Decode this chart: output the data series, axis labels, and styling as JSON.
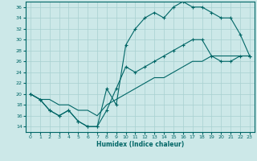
{
  "title": "",
  "xlabel": "Humidex (Indice chaleur)",
  "xlim": [
    -0.5,
    23.5
  ],
  "ylim": [
    13,
    37
  ],
  "xticks": [
    0,
    1,
    2,
    3,
    4,
    5,
    6,
    7,
    8,
    9,
    10,
    11,
    12,
    13,
    14,
    15,
    16,
    17,
    18,
    19,
    20,
    21,
    22,
    23
  ],
  "yticks": [
    14,
    16,
    18,
    20,
    22,
    24,
    26,
    28,
    30,
    32,
    34,
    36
  ],
  "bg_color": "#cce8e8",
  "grid_color": "#a8d0d0",
  "line_color": "#006666",
  "line1_x": [
    0,
    1,
    2,
    3,
    4,
    5,
    6,
    7,
    8,
    9,
    10,
    11,
    12,
    13,
    14,
    15,
    16,
    17,
    18,
    19,
    20,
    21,
    22,
    23
  ],
  "line1_y": [
    20,
    19,
    17,
    16,
    17,
    15,
    14,
    14,
    21,
    18,
    29,
    32,
    34,
    35,
    34,
    36,
    37,
    36,
    36,
    35,
    34,
    34,
    31,
    27
  ],
  "line2_x": [
    0,
    1,
    2,
    3,
    4,
    5,
    6,
    7,
    8,
    9,
    10,
    11,
    12,
    13,
    14,
    15,
    16,
    17,
    18,
    19,
    20,
    21,
    22,
    23
  ],
  "line2_y": [
    20,
    19,
    17,
    16,
    17,
    15,
    14,
    14,
    17,
    21,
    25,
    24,
    25,
    26,
    27,
    28,
    29,
    30,
    30,
    27,
    26,
    26,
    27,
    27
  ],
  "line3_x": [
    0,
    1,
    2,
    3,
    4,
    5,
    6,
    7,
    8,
    9,
    10,
    11,
    12,
    13,
    14,
    15,
    16,
    17,
    18,
    19,
    20,
    21,
    22,
    23
  ],
  "line3_y": [
    20,
    19,
    19,
    18,
    18,
    17,
    17,
    16,
    18,
    19,
    20,
    21,
    22,
    23,
    23,
    24,
    25,
    26,
    26,
    27,
    27,
    27,
    27,
    27
  ]
}
